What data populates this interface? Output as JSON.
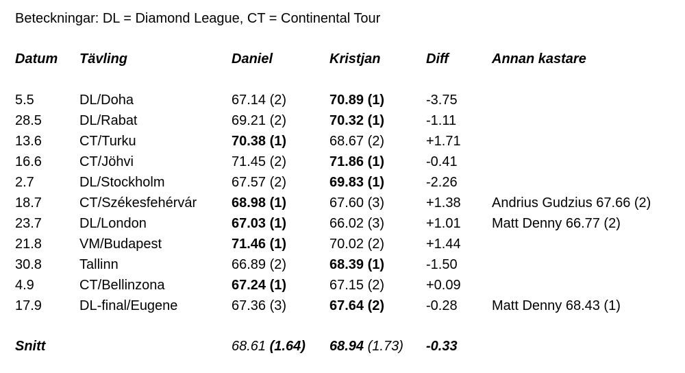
{
  "legend": "Beteckningar: DL = Diamond League, CT = Continental Tour",
  "headers": {
    "datum": "Datum",
    "tavling": "Tävling",
    "daniel": "Daniel",
    "kristjan": "Kristjan",
    "diff": "Diff",
    "annan": "Annan kastare"
  },
  "rows": [
    {
      "datum": "5.5",
      "tavling": "DL/Doha",
      "daniel": "67.14 (2)",
      "kristjan": "70.89 (1)",
      "diff": "-3.75",
      "annan": ""
    },
    {
      "datum": "28.5",
      "tavling": "DL/Rabat",
      "daniel": "69.21 (2)",
      "kristjan": "70.32 (1)",
      "diff": "-1.11",
      "annan": ""
    },
    {
      "datum": "13.6",
      "tavling": "CT/Turku",
      "daniel": "70.38 (1)",
      "kristjan": "68.67 (2)",
      "diff": "+1.71",
      "annan": ""
    },
    {
      "datum": "16.6",
      "tavling": "CT/Jöhvi",
      "daniel": "71.45 (2)",
      "kristjan": "71.86 (1)",
      "diff": "-0.41",
      "annan": ""
    },
    {
      "datum": "2.7",
      "tavling": "DL/Stockholm",
      "daniel": "67.57 (2)",
      "kristjan": "69.83 (1)",
      "diff": "-2.26",
      "annan": ""
    },
    {
      "datum": "18.7",
      "tavling": "CT/Székesfehérvár",
      "daniel": "68.98 (1)",
      "kristjan": "67.60 (3)",
      "diff": "+1.38",
      "annan": "Andrius Gudzius 67.66 (2)"
    },
    {
      "datum": "23.7",
      "tavling": "DL/London",
      "daniel": "67.03 (1)",
      "kristjan": "66.02 (3)",
      "diff": "+1.01",
      "annan": "Matt Denny 66.77 (2)"
    },
    {
      "datum": "21.8",
      "tavling": "VM/Budapest",
      "daniel": "71.46 (1)",
      "kristjan": "70.02 (2)",
      "diff": "+1.44",
      "annan": ""
    },
    {
      "datum": "30.8",
      "tavling": "Tallinn",
      "daniel": "66.89 (2)",
      "kristjan": "68.39 (1)",
      "diff": "-1.50",
      "annan": ""
    },
    {
      "datum": "4.9",
      "tavling": "CT/Bellinzona",
      "daniel": "67.24 (1)",
      "kristjan": "67.15 (2)",
      "diff": "+0.09",
      "annan": ""
    },
    {
      "datum": "17.9",
      "tavling": "DL-final/Eugene",
      "daniel": "67.36 (3)",
      "kristjan": "67.64 (2)",
      "diff": "-0.28",
      "annan": "Matt Denny 68.43 (1)"
    }
  ],
  "footer": {
    "label": "Snitt",
    "daniel_value": "68.61",
    "daniel_place": "(1.64)",
    "kristjan_value": "68.94",
    "kristjan_place": "(1.73)",
    "diff": "-0.33"
  }
}
